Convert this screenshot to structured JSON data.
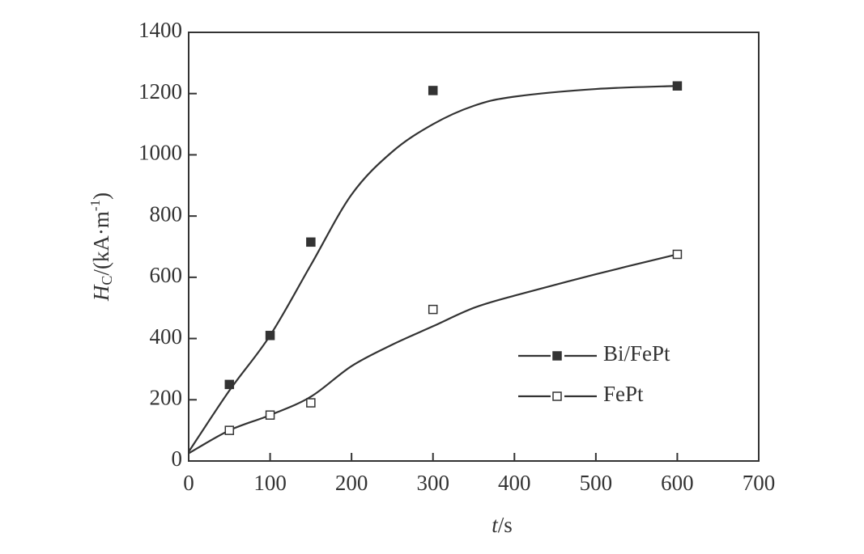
{
  "chart_data": {
    "type": "scatter-fit",
    "x_label": {
      "symbol": "t",
      "unit": "/s"
    },
    "y_label": {
      "symbol": "H",
      "subscript": "C",
      "unit": "/(kA·m",
      "exponent": "-1",
      "close": ")"
    },
    "xlim": [
      0,
      700
    ],
    "xticks": [
      0,
      100,
      200,
      300,
      400,
      500,
      600,
      700
    ],
    "ylim": [
      0,
      1400
    ],
    "yticks": [
      0,
      200,
      400,
      600,
      800,
      1000,
      1200,
      1400
    ],
    "legend": "lower-right",
    "series": [
      {
        "name": "Bi/FePt",
        "color": "#333333",
        "filled": true,
        "x": [
          50,
          100,
          150,
          300,
          600
        ],
        "values": [
          250,
          410,
          715,
          1210,
          1225
        ],
        "fit": {
          "x": [
            0,
            50,
            100,
            150,
            200,
            250,
            300,
            350,
            400,
            500,
            600
          ],
          "values": [
            30,
            230,
            410,
            640,
            870,
            1010,
            1100,
            1160,
            1190,
            1215,
            1225
          ]
        }
      },
      {
        "name": "FePt",
        "color": "#333333",
        "filled": false,
        "x": [
          50,
          100,
          150,
          300,
          600
        ],
        "values": [
          100,
          150,
          190,
          495,
          675
        ],
        "fit": {
          "x": [
            0,
            50,
            100,
            150,
            200,
            250,
            300,
            350,
            400,
            500,
            600
          ],
          "values": [
            25,
            100,
            150,
            210,
            310,
            380,
            440,
            500,
            540,
            610,
            675
          ]
        }
      }
    ]
  }
}
